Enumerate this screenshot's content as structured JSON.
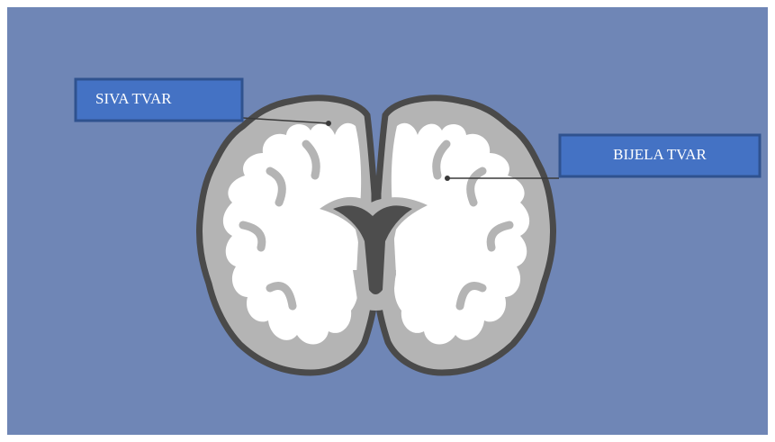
{
  "labels": {
    "gray_matter": "SIVA TVAR",
    "white_matter": "BIJELA TVAR"
  }
}
